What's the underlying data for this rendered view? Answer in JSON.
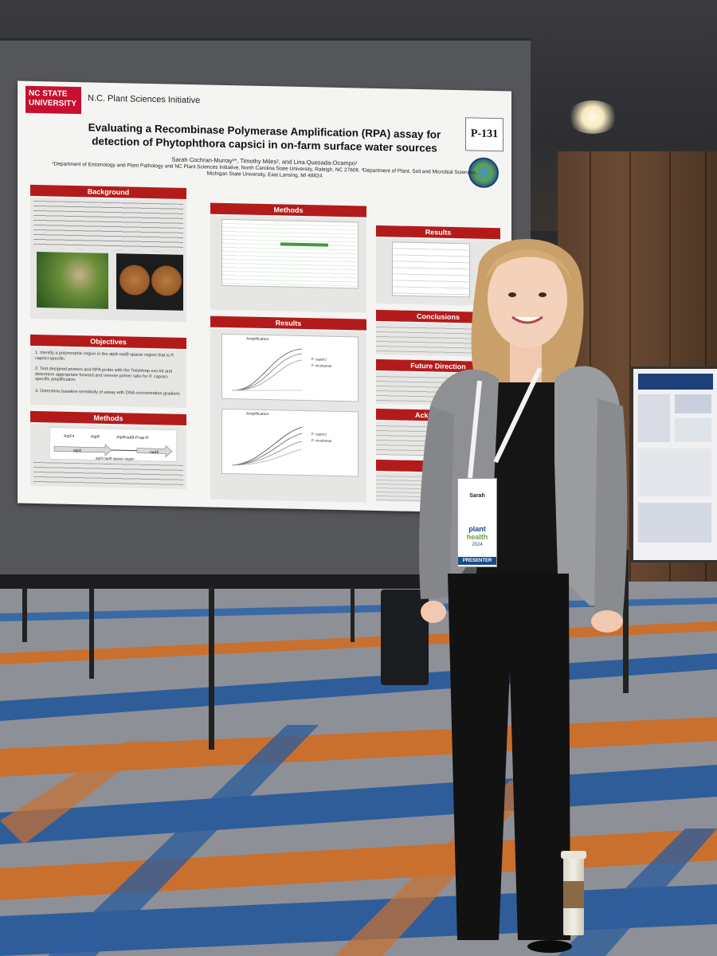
{
  "poster": {
    "university_logo": "NC STATE UNIVERSITY",
    "initiative": "N.C. Plant Sciences Initiative",
    "code": "P-131",
    "title_line1": "Evaluating a Recombinase Polymerase Amplification (RPA) assay for",
    "title_line2": "detection of Phytophthora capsici in on-farm surface water sources",
    "authors": "Sarah Cochran-Murray¹*, Timothy Miles², and Lina Quesada-Ocampo¹",
    "affiliation": "¹Department of Entomology and Plant Pathology and NC Plant Sciences Initiative, North Carolina State University, Raleigh, NC 27606. ²Department of Plant, Soil and Microbial Sciences, Michigan State University, East Lansing, MI 48824",
    "sections": {
      "background": "Background",
      "objectives": "Objectives",
      "methods_left": "Methods",
      "methods_center": "Methods",
      "results_center": "Results",
      "results_right": "Results",
      "conclusions": "Conclusions",
      "future": "Future Direction",
      "acknowledgements": "Acknowledge",
      "references": "Refere"
    },
    "objectives": [
      "1. Identify a polymorphic region in the atp9-nad9 spacer region that is P. capsici-specific.",
      "2. Test designed primers and RPA probe with the TwistAmp exo kit and determine appropriate forward and reverse primer ratio for P. capsici-specific amplification.",
      "3. Determine baseline sensitivity of assay with DNA concentration gradient."
    ],
    "diagram_labels": [
      "AtpF4",
      "AtpR",
      "AtpRnad9-Pcap-R",
      "nad9",
      "atp9",
      "atp9-nad9 spacer region"
    ],
    "chart_titles": [
      "Amplification",
      "Amplification"
    ],
    "legend_top": [
      "P. capsici",
      "P. nicotianae"
    ],
    "legend_bottom": [
      "P. capsici",
      "P. nicotianae"
    ]
  },
  "badge": {
    "name": "Sarah",
    "event_line1": "plant",
    "event_line2": "health",
    "year": "2024",
    "role": "PRESENTER"
  },
  "colors": {
    "poster_red": "#b31b1b",
    "blazer": "#8f9093",
    "carpet_blue": "#2f5d9a",
    "carpet_orange": "#c9702f"
  }
}
